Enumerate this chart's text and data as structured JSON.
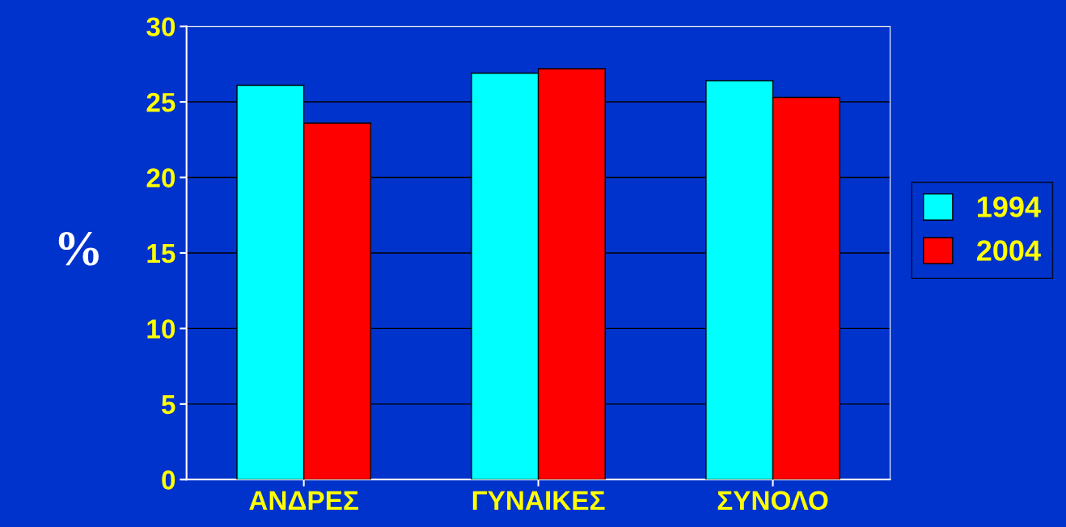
{
  "chart_data": {
    "type": "bar",
    "ylabel": "%",
    "categories": [
      "ΑΝΔΡΕΣ",
      "ΓΥΝΑΙΚΕΣ",
      "ΣΥΝΟΛΟ"
    ],
    "series": [
      {
        "name": "1994",
        "color": "#00ffff",
        "values": [
          26.1,
          26.9,
          26.4
        ]
      },
      {
        "name": "2004",
        "color": "#ff0000",
        "values": [
          23.6,
          27.2,
          25.3
        ]
      }
    ],
    "ylim": [
      0,
      30
    ],
    "yticks": [
      0,
      5,
      10,
      15,
      20,
      25,
      30
    ],
    "grid": "y",
    "legend": "right"
  }
}
